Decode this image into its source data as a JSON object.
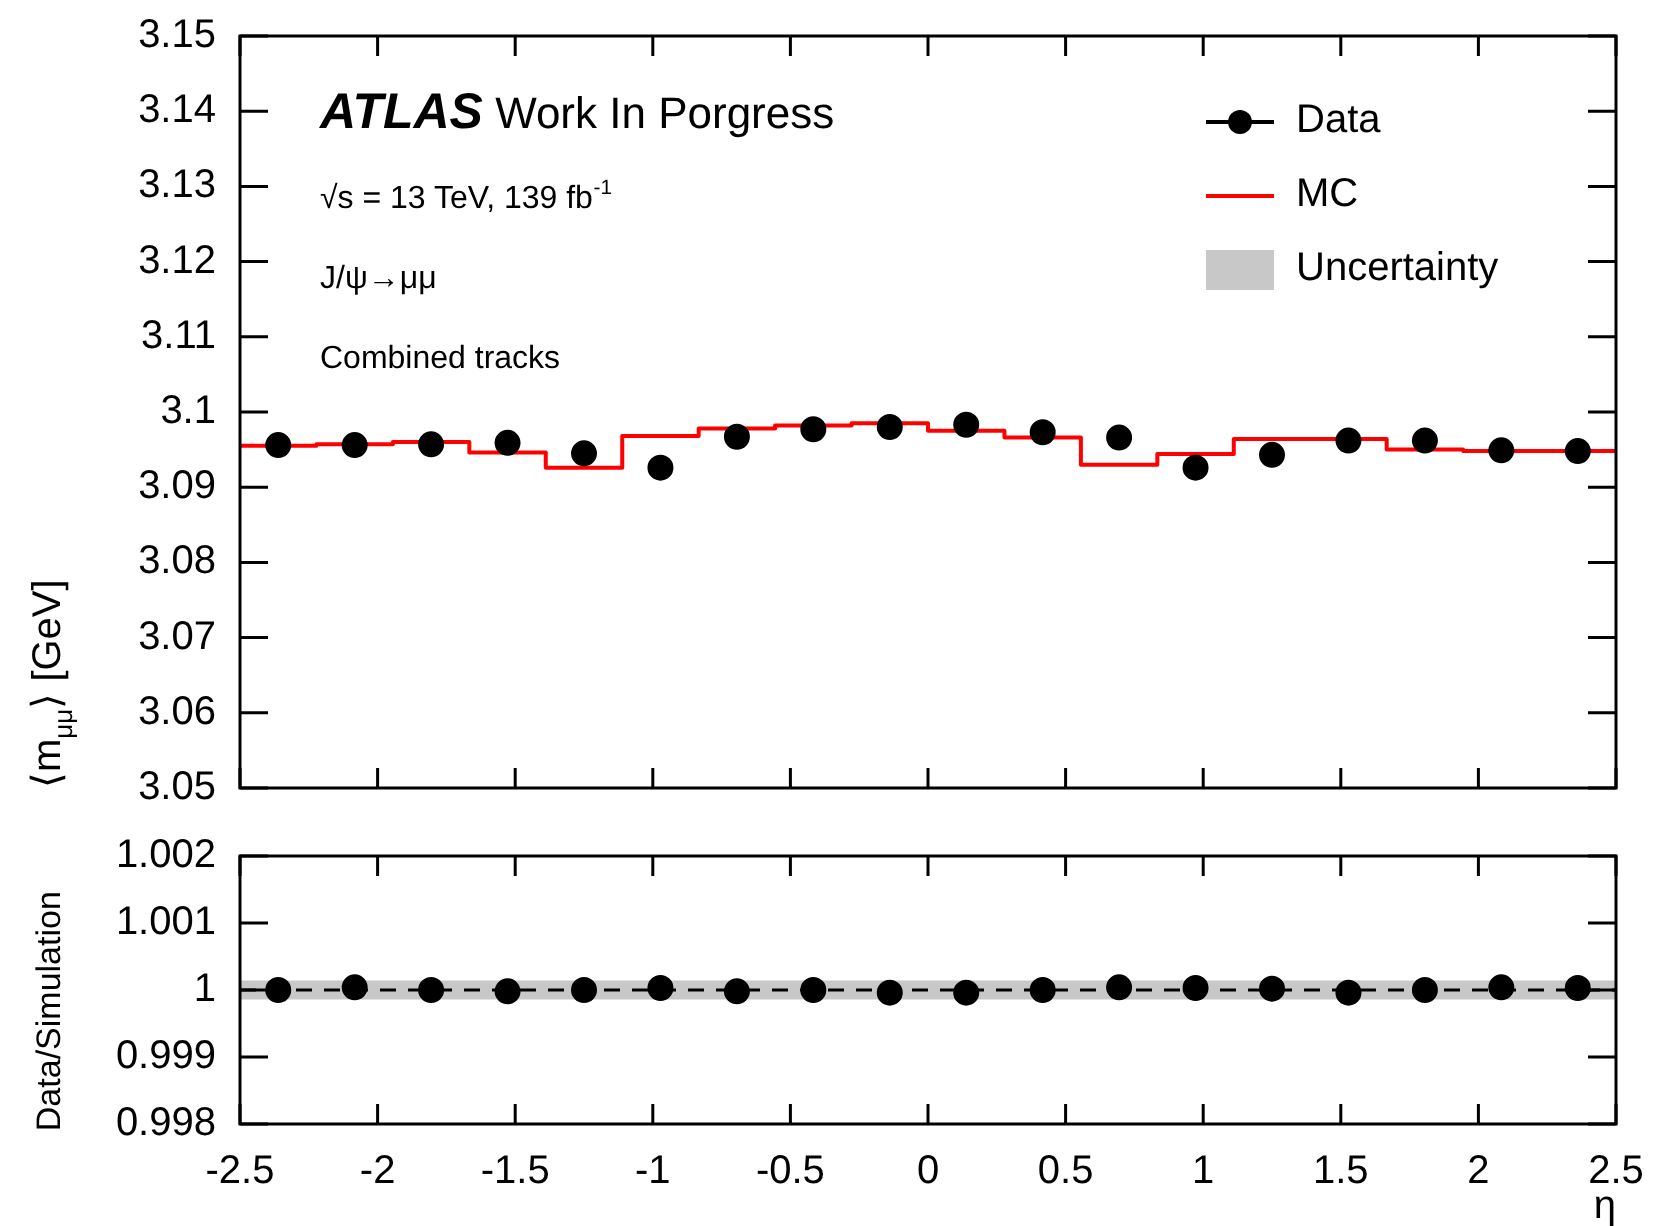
{
  "chart_data": [
    {
      "type": "scatter",
      "ylabel": "⟨m$_{μμ}$⟩ [GeV]",
      "annotations": [
        "ATLAS Work In Porgress",
        "√s = 13 TeV, 139 fb$^{-1}$",
        "J/ψ→μμ",
        "Combined tracks"
      ],
      "x": [
        -2.3611,
        -2.0833,
        -1.8056,
        -1.5278,
        -1.25,
        -0.9722,
        -0.6944,
        -0.4167,
        -0.1389,
        0.1389,
        0.4167,
        0.6944,
        0.9722,
        1.25,
        1.5278,
        1.8056,
        2.0833,
        2.3611
      ],
      "series": [
        {
          "name": "Data",
          "type": "scatter",
          "color": "#000000",
          "marker": "circle",
          "values": [
            3.0956,
            3.0956,
            3.0957,
            3.0959,
            3.0945,
            3.0926,
            3.0967,
            3.0977,
            3.098,
            3.0983,
            3.0973,
            3.0966,
            3.0926,
            3.0943,
            3.0962,
            3.0962,
            3.0949,
            3.0948
          ]
        },
        {
          "name": "MC",
          "type": "step",
          "color": "#ff0000",
          "x": [
            -2.5,
            -2.2222,
            -1.9444,
            -1.6667,
            -1.3889,
            -1.1111,
            -0.8333,
            -0.5556,
            -0.2778,
            0,
            0.2778,
            0.5556,
            0.8333,
            1.1111,
            1.3889,
            1.6667,
            1.9444,
            2.2222,
            2.5
          ],
          "values": [
            3.0957,
            3.0955,
            3.0957,
            3.096,
            3.0946,
            3.0926,
            3.0968,
            3.0978,
            3.0982,
            3.0985,
            3.0975,
            3.0966,
            3.093,
            3.0944,
            3.0964,
            3.0964,
            3.095,
            3.0948,
            3.0948
          ]
        }
      ],
      "xlim": [
        -2.5,
        2.5
      ],
      "xticks": [
        -2.5,
        -2,
        -1.5,
        -1,
        -0.5,
        0,
        0.5,
        1,
        1.5,
        2,
        2.5
      ],
      "ylim": [
        3.05,
        3.15
      ],
      "yticks": [
        3.05,
        3.06,
        3.07,
        3.08,
        3.09,
        3.1,
        3.11,
        3.12,
        3.13,
        3.14,
        3.15
      ],
      "tick_labels": "y",
      "grid": false,
      "legend": "top right"
    },
    {
      "type": "scatter",
      "ylabel": "Data/Simulation",
      "xlabel": "η",
      "x": [
        -2.3611,
        -2.0833,
        -1.8056,
        -1.5278,
        -1.25,
        -0.9722,
        -0.6944,
        -0.4167,
        -0.1389,
        0.1389,
        0.4167,
        0.6944,
        0.9722,
        1.25,
        1.5278,
        1.8056,
        2.0833,
        2.3611
      ],
      "series": [
        {
          "type": "scatter",
          "color": "#000000",
          "marker": "circle",
          "values": [
            1.0,
            1.00004,
            1.0,
            0.99998,
            1.0,
            1.00003,
            0.99998,
            1.0,
            0.99996,
            0.99996,
            1.0,
            1.00004,
            1.00003,
            1.00002,
            0.99996,
            1.0,
            1.00004,
            1.00003
          ]
        }
      ],
      "bands": [
        {
          "axis": "y",
          "from": 0.99986,
          "to": 1.00014,
          "label": "Uncertainty",
          "color": "#c8c8c8"
        }
      ],
      "ref_lines": [
        {
          "axis": "y",
          "value": 1,
          "color": "#000000",
          "line_style": "dashed"
        }
      ],
      "xlim": [
        -2.5,
        2.5
      ],
      "xticks": [
        -2.5,
        -2,
        -1.5,
        -1,
        -0.5,
        0,
        0.5,
        1,
        1.5,
        2,
        2.5
      ],
      "ylim": [
        0.998,
        1.002
      ],
      "yticks": [
        0.998,
        0.999,
        1,
        1.001,
        1.002
      ],
      "grid": false
    }
  ]
}
